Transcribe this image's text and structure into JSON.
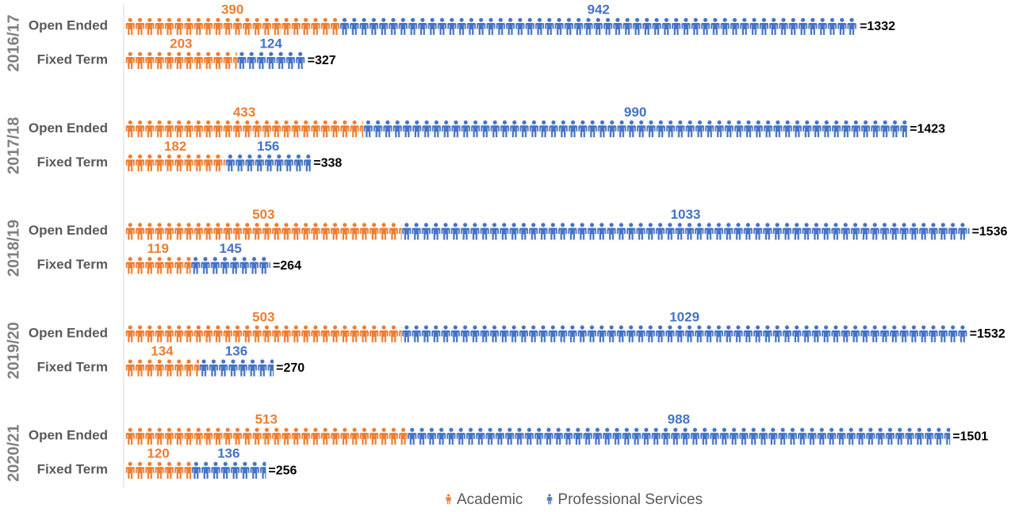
{
  "chart_data": {
    "type": "bar",
    "stacked": true,
    "orientation": "horizontal",
    "groups": [
      "2016/17",
      "2017/18",
      "2018/19",
      "2019/20",
      "2020/21"
    ],
    "categories": [
      "Open Ended",
      "Fixed Term",
      "Open Ended",
      "Fixed Term",
      "Open Ended",
      "Fixed Term",
      "Open Ended",
      "Fixed Term",
      "Open Ended",
      "Fixed Term"
    ],
    "series": [
      {
        "name": "Academic",
        "color": "#ed7d31",
        "values": [
          390,
          203,
          433,
          182,
          503,
          119,
          503,
          134,
          513,
          120
        ]
      },
      {
        "name": "Professional Services",
        "color": "#4472c4",
        "values": [
          942,
          124,
          990,
          156,
          1033,
          145,
          1029,
          136,
          988,
          136
        ]
      }
    ],
    "total_labels": [
      "=1332",
      "=327",
      "=1423",
      "=338",
      "=1536",
      "=264",
      "=1532",
      "=270",
      "=1501",
      "=256"
    ]
  }
}
